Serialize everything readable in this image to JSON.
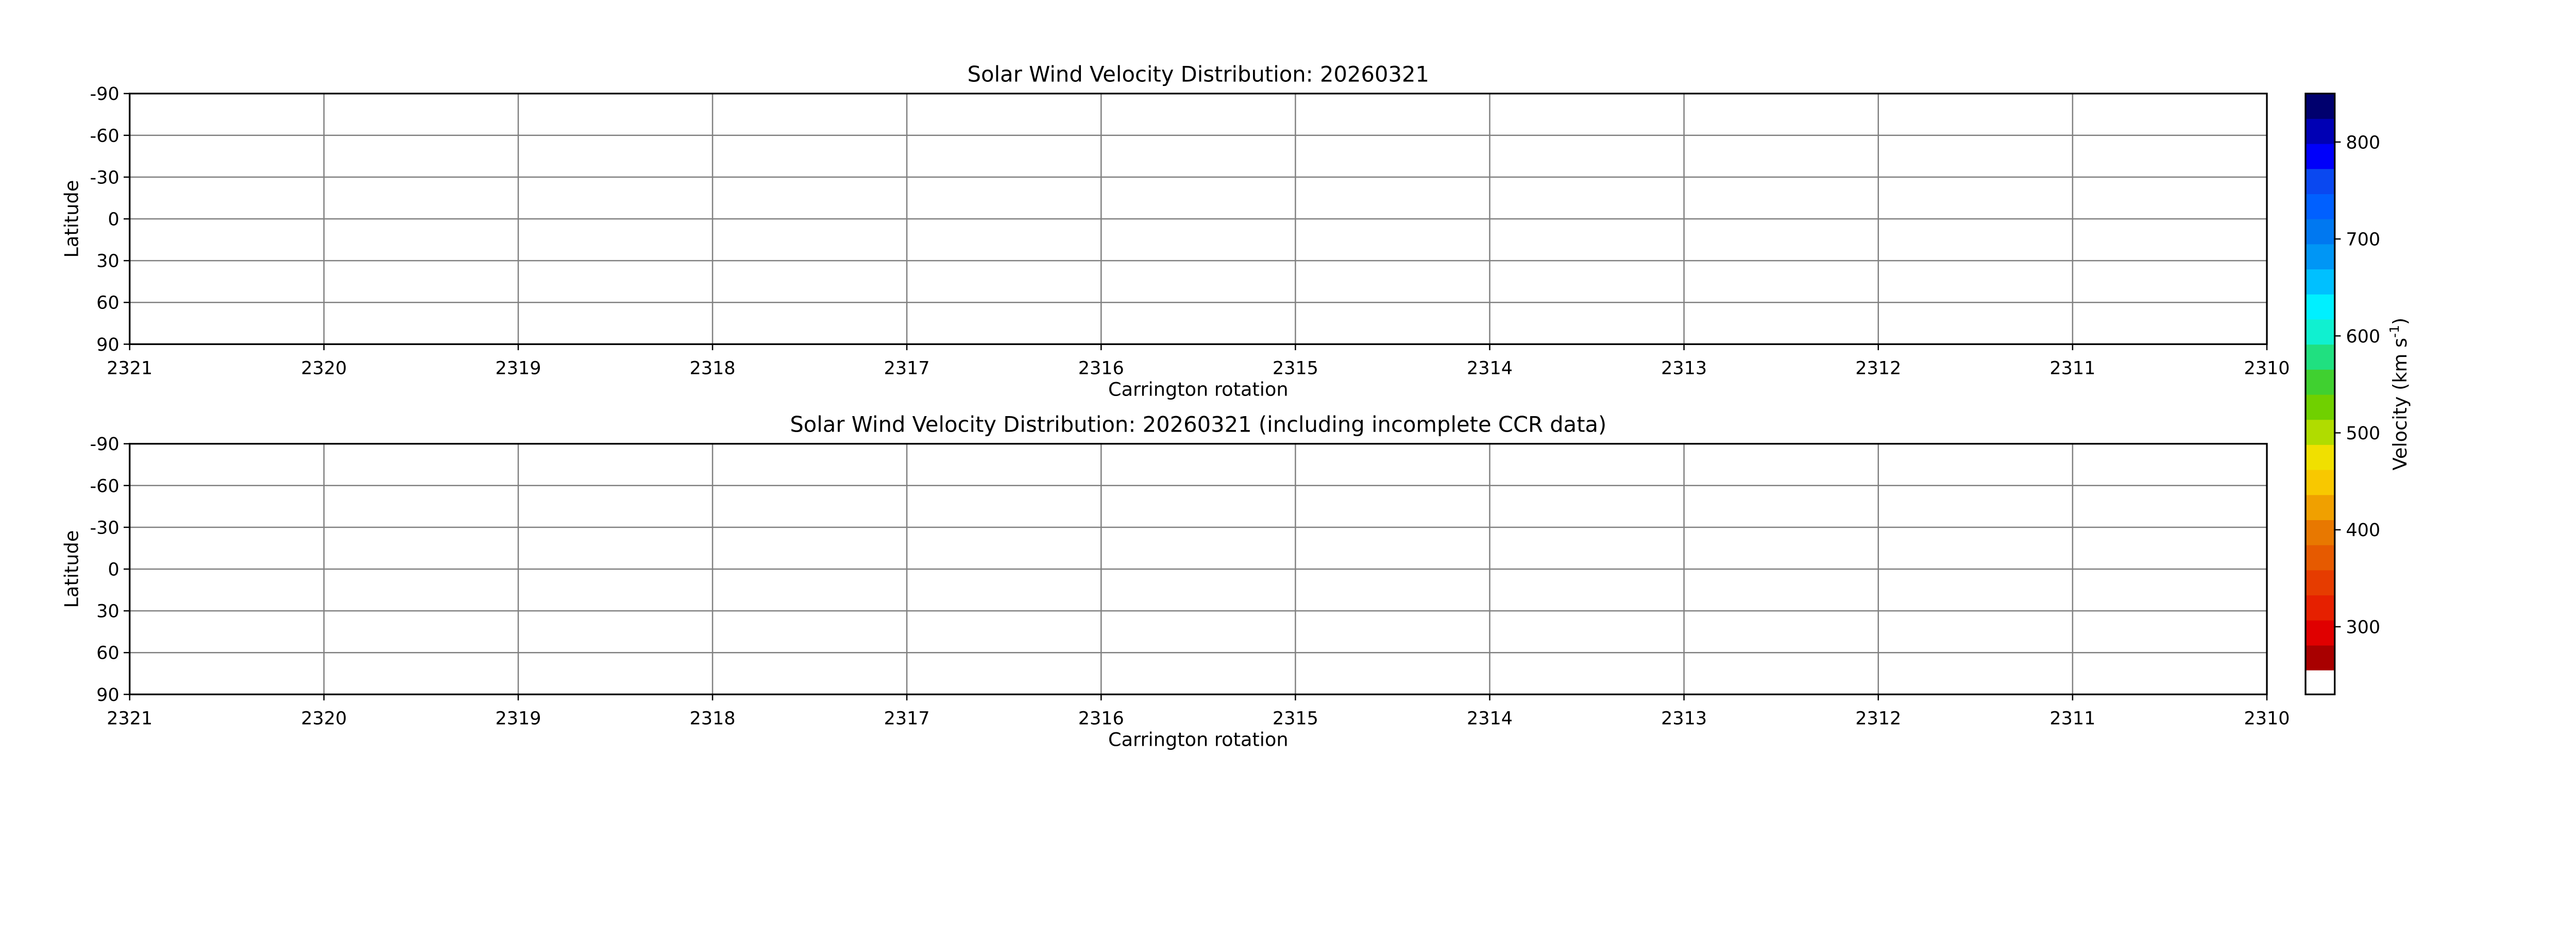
{
  "chart_data": [
    {
      "type": "heatmap",
      "title": "Solar Wind Velocity Distribution: 20260321",
      "xlabel": "Carrington rotation",
      "ylabel": "Latitude",
      "xlim": [
        2321,
        2310
      ],
      "ylim": [
        -90,
        90
      ],
      "x_ticks": [
        "2321",
        "2320",
        "2319",
        "2318",
        "2317",
        "2316",
        "2315",
        "2314",
        "2313",
        "2312",
        "2311",
        "2310"
      ],
      "y_ticks": [
        "-90",
        "-60",
        "-30",
        "0",
        "30",
        "60",
        "90"
      ],
      "grid": true,
      "values": []
    },
    {
      "type": "heatmap",
      "title": "Solar Wind Velocity Distribution: 20260321 (including incomplete CCR data)",
      "xlabel": "Carrington rotation",
      "ylabel": "Latitude",
      "xlim": [
        2321,
        2310
      ],
      "ylim": [
        -90,
        90
      ],
      "x_ticks": [
        "2321",
        "2320",
        "2319",
        "2318",
        "2317",
        "2316",
        "2315",
        "2314",
        "2313",
        "2312",
        "2311",
        "2310"
      ],
      "y_ticks": [
        "-90",
        "-60",
        "-30",
        "0",
        "30",
        "60",
        "90"
      ],
      "grid": true,
      "values": []
    }
  ],
  "colorbar": {
    "label": "Velocity (km s",
    "label_sup": "-1",
    "label_end": ")",
    "range": [
      255,
      850
    ],
    "ticks": [
      "300",
      "400",
      "500",
      "600",
      "700",
      "800"
    ],
    "under_color": "#ffffff",
    "colors": [
      "#a80000",
      "#e00000",
      "#e62000",
      "#e63c00",
      "#e65a00",
      "#e87800",
      "#f0a000",
      "#f8c800",
      "#f0e000",
      "#b0dc00",
      "#70d000",
      "#40d030",
      "#20e080",
      "#10f0d0",
      "#00f0ff",
      "#00c0ff",
      "#0096f5",
      "#0078f0",
      "#0060ff",
      "#0a48f0",
      "#0000fa",
      "#0000b4",
      "#00006e"
    ]
  }
}
